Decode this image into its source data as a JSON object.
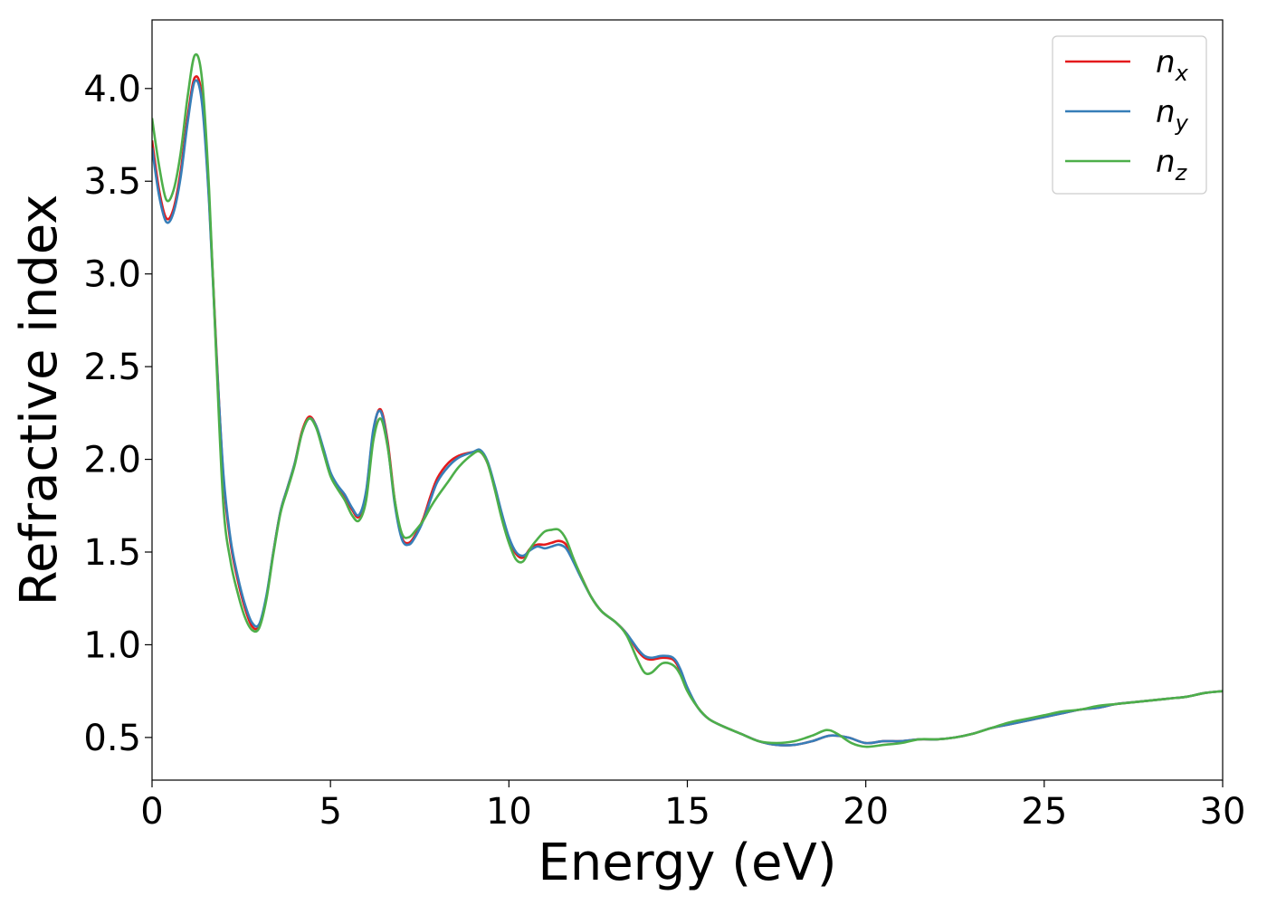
{
  "chart_data": {
    "type": "line",
    "title": "",
    "xlabel": "Energy (eV)",
    "ylabel": "Refractive index",
    "xlim": [
      0,
      30
    ],
    "ylim": [
      0.27,
      4.37
    ],
    "xticks": [
      0,
      5,
      10,
      15,
      20,
      25,
      30
    ],
    "xtick_labels": [
      "0",
      "5",
      "10",
      "15",
      "20",
      "25",
      "30"
    ],
    "yticks": [
      0.5,
      1.0,
      1.5,
      2.0,
      2.5,
      3.0,
      3.5,
      4.0
    ],
    "ytick_labels": [
      "0.5",
      "1.0",
      "1.5",
      "2.0",
      "2.5",
      "3.0",
      "3.5",
      "4.0"
    ],
    "grid": false,
    "legend_position": "top-right",
    "series": [
      {
        "name": "n",
        "subscript": "x",
        "color": "#e41a1c",
        "points": [
          [
            0,
            3.72
          ],
          [
            0.2,
            3.45
          ],
          [
            0.4,
            3.3
          ],
          [
            0.6,
            3.35
          ],
          [
            0.8,
            3.55
          ],
          [
            1.0,
            3.85
          ],
          [
            1.2,
            4.06
          ],
          [
            1.4,
            3.95
          ],
          [
            1.6,
            3.4
          ],
          [
            1.8,
            2.6
          ],
          [
            2.0,
            1.9
          ],
          [
            2.2,
            1.55
          ],
          [
            2.4,
            1.35
          ],
          [
            2.6,
            1.2
          ],
          [
            2.8,
            1.1
          ],
          [
            3.0,
            1.1
          ],
          [
            3.2,
            1.25
          ],
          [
            3.4,
            1.5
          ],
          [
            3.6,
            1.72
          ],
          [
            3.8,
            1.85
          ],
          [
            4.0,
            1.98
          ],
          [
            4.2,
            2.15
          ],
          [
            4.4,
            2.23
          ],
          [
            4.6,
            2.18
          ],
          [
            4.8,
            2.05
          ],
          [
            5.0,
            1.92
          ],
          [
            5.2,
            1.85
          ],
          [
            5.4,
            1.8
          ],
          [
            5.6,
            1.73
          ],
          [
            5.8,
            1.69
          ],
          [
            6.0,
            1.82
          ],
          [
            6.2,
            2.15
          ],
          [
            6.4,
            2.27
          ],
          [
            6.6,
            2.1
          ],
          [
            6.8,
            1.78
          ],
          [
            7.0,
            1.58
          ],
          [
            7.2,
            1.55
          ],
          [
            7.4,
            1.6
          ],
          [
            7.6,
            1.68
          ],
          [
            7.8,
            1.8
          ],
          [
            8.0,
            1.9
          ],
          [
            8.3,
            1.98
          ],
          [
            8.6,
            2.02
          ],
          [
            9.0,
            2.04
          ],
          [
            9.2,
            2.04
          ],
          [
            9.4,
            1.98
          ],
          [
            9.6,
            1.85
          ],
          [
            9.8,
            1.7
          ],
          [
            10.0,
            1.57
          ],
          [
            10.2,
            1.49
          ],
          [
            10.4,
            1.47
          ],
          [
            10.6,
            1.52
          ],
          [
            10.8,
            1.54
          ],
          [
            11.0,
            1.54
          ],
          [
            11.2,
            1.55
          ],
          [
            11.4,
            1.56
          ],
          [
            11.6,
            1.54
          ],
          [
            11.8,
            1.46
          ],
          [
            12.0,
            1.38
          ],
          [
            12.3,
            1.26
          ],
          [
            12.6,
            1.18
          ],
          [
            13.0,
            1.12
          ],
          [
            13.3,
            1.06
          ],
          [
            13.6,
            0.97
          ],
          [
            13.8,
            0.93
          ],
          [
            14.0,
            0.92
          ],
          [
            14.3,
            0.93
          ],
          [
            14.6,
            0.92
          ],
          [
            14.8,
            0.86
          ],
          [
            15.0,
            0.76
          ],
          [
            15.3,
            0.66
          ],
          [
            15.6,
            0.6
          ],
          [
            16.0,
            0.56
          ],
          [
            16.5,
            0.52
          ],
          [
            17.0,
            0.48
          ],
          [
            17.5,
            0.46
          ],
          [
            18.0,
            0.46
          ],
          [
            18.5,
            0.48
          ],
          [
            19.0,
            0.51
          ],
          [
            19.5,
            0.5
          ],
          [
            20.0,
            0.47
          ],
          [
            20.5,
            0.48
          ],
          [
            21.0,
            0.48
          ],
          [
            21.5,
            0.49
          ],
          [
            22.0,
            0.49
          ],
          [
            22.5,
            0.5
          ],
          [
            23.0,
            0.52
          ],
          [
            23.5,
            0.55
          ],
          [
            24.0,
            0.57
          ],
          [
            24.5,
            0.59
          ],
          [
            25.0,
            0.61
          ],
          [
            25.5,
            0.63
          ],
          [
            26.0,
            0.65
          ],
          [
            26.5,
            0.66
          ],
          [
            27.0,
            0.68
          ],
          [
            27.5,
            0.69
          ],
          [
            28.0,
            0.7
          ],
          [
            28.5,
            0.71
          ],
          [
            29.0,
            0.72
          ],
          [
            29.5,
            0.74
          ],
          [
            30.0,
            0.75
          ]
        ]
      },
      {
        "name": "n",
        "subscript": "y",
        "color": "#377eb8",
        "points": [
          [
            0,
            3.68
          ],
          [
            0.2,
            3.42
          ],
          [
            0.4,
            3.28
          ],
          [
            0.6,
            3.33
          ],
          [
            0.8,
            3.52
          ],
          [
            1.0,
            3.82
          ],
          [
            1.2,
            4.04
          ],
          [
            1.4,
            3.92
          ],
          [
            1.6,
            3.38
          ],
          [
            1.8,
            2.58
          ],
          [
            2.0,
            1.92
          ],
          [
            2.2,
            1.57
          ],
          [
            2.4,
            1.37
          ],
          [
            2.6,
            1.22
          ],
          [
            2.8,
            1.12
          ],
          [
            3.0,
            1.11
          ],
          [
            3.2,
            1.26
          ],
          [
            3.4,
            1.5
          ],
          [
            3.6,
            1.72
          ],
          [
            3.8,
            1.85
          ],
          [
            4.0,
            1.98
          ],
          [
            4.2,
            2.14
          ],
          [
            4.4,
            2.22
          ],
          [
            4.6,
            2.18
          ],
          [
            4.8,
            2.06
          ],
          [
            5.0,
            1.93
          ],
          [
            5.2,
            1.86
          ],
          [
            5.4,
            1.81
          ],
          [
            5.6,
            1.74
          ],
          [
            5.8,
            1.7
          ],
          [
            6.0,
            1.83
          ],
          [
            6.2,
            2.16
          ],
          [
            6.4,
            2.26
          ],
          [
            6.6,
            2.08
          ],
          [
            6.8,
            1.76
          ],
          [
            7.0,
            1.57
          ],
          [
            7.2,
            1.54
          ],
          [
            7.4,
            1.59
          ],
          [
            7.6,
            1.67
          ],
          [
            7.8,
            1.78
          ],
          [
            8.0,
            1.88
          ],
          [
            8.3,
            1.96
          ],
          [
            8.6,
            2.01
          ],
          [
            9.0,
            2.04
          ],
          [
            9.2,
            2.05
          ],
          [
            9.4,
            1.99
          ],
          [
            9.6,
            1.86
          ],
          [
            9.8,
            1.71
          ],
          [
            10.0,
            1.58
          ],
          [
            10.2,
            1.5
          ],
          [
            10.4,
            1.48
          ],
          [
            10.6,
            1.51
          ],
          [
            10.8,
            1.53
          ],
          [
            11.0,
            1.52
          ],
          [
            11.2,
            1.53
          ],
          [
            11.4,
            1.54
          ],
          [
            11.6,
            1.52
          ],
          [
            11.8,
            1.45
          ],
          [
            12.0,
            1.37
          ],
          [
            12.3,
            1.26
          ],
          [
            12.6,
            1.18
          ],
          [
            13.0,
            1.12
          ],
          [
            13.3,
            1.06
          ],
          [
            13.6,
            0.98
          ],
          [
            13.8,
            0.94
          ],
          [
            14.0,
            0.93
          ],
          [
            14.3,
            0.94
          ],
          [
            14.6,
            0.93
          ],
          [
            14.8,
            0.87
          ],
          [
            15.0,
            0.77
          ],
          [
            15.3,
            0.66
          ],
          [
            15.6,
            0.6
          ],
          [
            16.0,
            0.56
          ],
          [
            16.5,
            0.52
          ],
          [
            17.0,
            0.48
          ],
          [
            17.5,
            0.46
          ],
          [
            18.0,
            0.46
          ],
          [
            18.5,
            0.48
          ],
          [
            19.0,
            0.51
          ],
          [
            19.5,
            0.5
          ],
          [
            20.0,
            0.47
          ],
          [
            20.5,
            0.48
          ],
          [
            21.0,
            0.48
          ],
          [
            21.5,
            0.49
          ],
          [
            22.0,
            0.49
          ],
          [
            22.5,
            0.5
          ],
          [
            23.0,
            0.52
          ],
          [
            23.5,
            0.55
          ],
          [
            24.0,
            0.57
          ],
          [
            24.5,
            0.59
          ],
          [
            25.0,
            0.61
          ],
          [
            25.5,
            0.63
          ],
          [
            26.0,
            0.65
          ],
          [
            26.5,
            0.66
          ],
          [
            27.0,
            0.68
          ],
          [
            27.5,
            0.69
          ],
          [
            28.0,
            0.7
          ],
          [
            28.5,
            0.71
          ],
          [
            29.0,
            0.72
          ],
          [
            29.5,
            0.74
          ],
          [
            30.0,
            0.75
          ]
        ]
      },
      {
        "name": "n",
        "subscript": "z",
        "color": "#4daf4a",
        "points": [
          [
            0,
            3.84
          ],
          [
            0.2,
            3.58
          ],
          [
            0.4,
            3.4
          ],
          [
            0.6,
            3.45
          ],
          [
            0.8,
            3.65
          ],
          [
            1.0,
            3.96
          ],
          [
            1.2,
            4.18
          ],
          [
            1.4,
            4.05
          ],
          [
            1.6,
            3.45
          ],
          [
            1.8,
            2.55
          ],
          [
            2.0,
            1.75
          ],
          [
            2.2,
            1.45
          ],
          [
            2.4,
            1.28
          ],
          [
            2.6,
            1.15
          ],
          [
            2.8,
            1.08
          ],
          [
            3.0,
            1.09
          ],
          [
            3.2,
            1.24
          ],
          [
            3.4,
            1.49
          ],
          [
            3.6,
            1.71
          ],
          [
            3.8,
            1.84
          ],
          [
            4.0,
            1.97
          ],
          [
            4.2,
            2.14
          ],
          [
            4.4,
            2.22
          ],
          [
            4.6,
            2.17
          ],
          [
            4.8,
            2.04
          ],
          [
            5.0,
            1.91
          ],
          [
            5.2,
            1.84
          ],
          [
            5.4,
            1.78
          ],
          [
            5.6,
            1.7
          ],
          [
            5.8,
            1.67
          ],
          [
            6.0,
            1.78
          ],
          [
            6.2,
            2.1
          ],
          [
            6.4,
            2.22
          ],
          [
            6.6,
            2.07
          ],
          [
            6.8,
            1.78
          ],
          [
            7.0,
            1.6
          ],
          [
            7.2,
            1.58
          ],
          [
            7.4,
            1.62
          ],
          [
            7.6,
            1.67
          ],
          [
            7.8,
            1.74
          ],
          [
            8.0,
            1.8
          ],
          [
            8.3,
            1.88
          ],
          [
            8.6,
            1.96
          ],
          [
            9.0,
            2.03
          ],
          [
            9.2,
            2.04
          ],
          [
            9.4,
            1.98
          ],
          [
            9.6,
            1.84
          ],
          [
            9.8,
            1.68
          ],
          [
            10.0,
            1.55
          ],
          [
            10.2,
            1.46
          ],
          [
            10.4,
            1.45
          ],
          [
            10.6,
            1.52
          ],
          [
            10.8,
            1.57
          ],
          [
            11.0,
            1.61
          ],
          [
            11.2,
            1.62
          ],
          [
            11.4,
            1.62
          ],
          [
            11.6,
            1.57
          ],
          [
            11.8,
            1.47
          ],
          [
            12.0,
            1.38
          ],
          [
            12.3,
            1.26
          ],
          [
            12.6,
            1.18
          ],
          [
            13.0,
            1.12
          ],
          [
            13.3,
            1.05
          ],
          [
            13.6,
            0.92
          ],
          [
            13.8,
            0.85
          ],
          [
            14.0,
            0.85
          ],
          [
            14.3,
            0.9
          ],
          [
            14.6,
            0.89
          ],
          [
            14.8,
            0.84
          ],
          [
            15.0,
            0.75
          ],
          [
            15.3,
            0.66
          ],
          [
            15.6,
            0.6
          ],
          [
            16.0,
            0.56
          ],
          [
            16.5,
            0.52
          ],
          [
            17.0,
            0.48
          ],
          [
            17.5,
            0.47
          ],
          [
            18.0,
            0.48
          ],
          [
            18.5,
            0.51
          ],
          [
            18.9,
            0.54
          ],
          [
            19.2,
            0.52
          ],
          [
            19.6,
            0.47
          ],
          [
            20.0,
            0.45
          ],
          [
            20.5,
            0.46
          ],
          [
            21.0,
            0.47
          ],
          [
            21.5,
            0.49
          ],
          [
            22.0,
            0.49
          ],
          [
            22.5,
            0.5
          ],
          [
            23.0,
            0.52
          ],
          [
            23.5,
            0.55
          ],
          [
            24.0,
            0.58
          ],
          [
            24.5,
            0.6
          ],
          [
            25.0,
            0.62
          ],
          [
            25.5,
            0.64
          ],
          [
            26.0,
            0.65
          ],
          [
            26.5,
            0.67
          ],
          [
            27.0,
            0.68
          ],
          [
            27.5,
            0.69
          ],
          [
            28.0,
            0.7
          ],
          [
            28.5,
            0.71
          ],
          [
            29.0,
            0.72
          ],
          [
            29.5,
            0.74
          ],
          [
            30.0,
            0.75
          ]
        ]
      }
    ]
  }
}
